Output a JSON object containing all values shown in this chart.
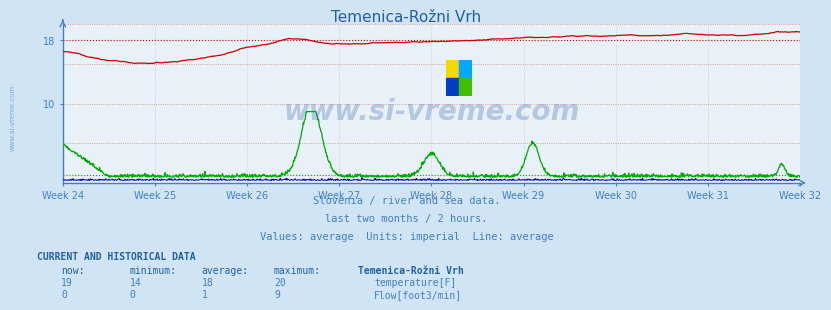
{
  "title": "Temenica-Rožni Vrh",
  "bg_color": "#d0e4f4",
  "plot_bg_color": "#e8f0f8",
  "title_color": "#2060a0",
  "axis_color": "#4080c0",
  "text_color": "#4080c0",
  "grid_color": "#b8cce0",
  "weeks": [
    "Week 24",
    "Week 25",
    "Week 26",
    "Week 27",
    "Week 28",
    "Week 29",
    "Week 30",
    "Week 31",
    "Week 32"
  ],
  "ylim": [
    0,
    20
  ],
  "ytick_vals": [
    10,
    18
  ],
  "temp_color": "#cc0000",
  "flow_color": "#00aa00",
  "height_color": "#0000bb",
  "temp_avg": 18,
  "flow_avg": 1,
  "watermark": "www.si-vreme.com",
  "subtitle1": "Slovenia / river and sea data.",
  "subtitle2": "last two months / 2 hours.",
  "subtitle3": "Values: average  Units: imperial  Line: average",
  "footer_title": "CURRENT AND HISTORICAL DATA",
  "footer_headers": [
    "now:",
    "minimum:",
    "average:",
    "maximum:",
    "Temenica-Rožni Vrh"
  ],
  "footer_temp": [
    "19",
    "14",
    "18",
    "20",
    "temperature[F]"
  ],
  "footer_flow": [
    "0",
    "0",
    "1",
    "9",
    "Flow[foot3/min]"
  ],
  "n_points": 1344
}
